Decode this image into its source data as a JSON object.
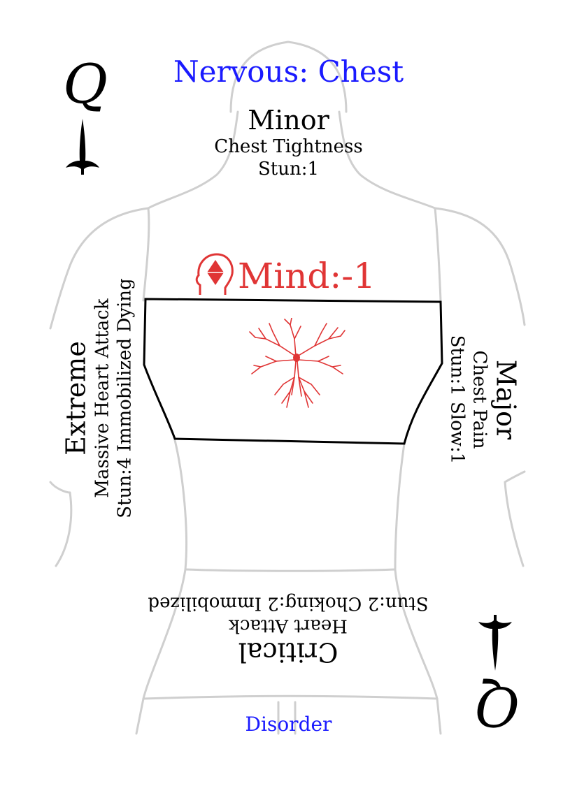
{
  "card": {
    "rank": "Q",
    "title": "Nervous: Chest",
    "footer": "Disorder",
    "colors": {
      "title": "#1a1aff",
      "footer": "#1a1aff",
      "mind": "#e03535",
      "outline": "#cfcfcf",
      "box": "#000000"
    }
  },
  "minor": {
    "label": "Minor",
    "effect": "Chest Tightness",
    "stats": "Stun:1"
  },
  "major": {
    "label": "Major",
    "effect": "Chest Pain",
    "stats": "Stun:1 Slow:1"
  },
  "critical": {
    "label": "Critical",
    "effect": "Heart Attack",
    "stats": "Stun:2 Choking:2 Immobilized"
  },
  "extreme": {
    "label": "Extreme",
    "effect": "Massive Heart Attack",
    "stats": "Stun:4 Immobilized Dying"
  },
  "mind": {
    "text": "Mind:-1",
    "icon": "head-crystal-icon"
  },
  "center_icon": "neuron-icon",
  "suit_icon": "spade-pip-icon"
}
